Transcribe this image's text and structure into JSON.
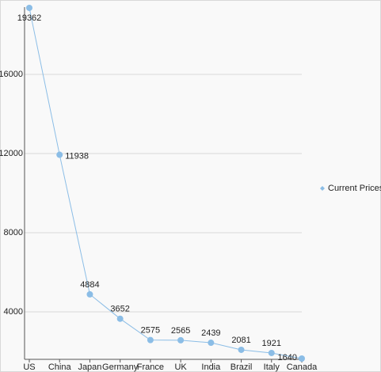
{
  "chart_data": {
    "type": "line",
    "categories": [
      "US",
      "China",
      "Japan",
      "Germany",
      "France",
      "UK",
      "India",
      "Brazil",
      "Italy",
      "Canada"
    ],
    "series": [
      {
        "name": "Current Prices",
        "color": "#8bbde6",
        "values": [
          19362,
          11938,
          4884,
          3652,
          2575,
          2565,
          2439,
          2081,
          1921,
          1640
        ]
      }
    ],
    "ylim": [
      1600,
      19400
    ],
    "yticks": [
      4000,
      8000,
      12000,
      16000
    ],
    "grid": true,
    "legend": "right"
  }
}
